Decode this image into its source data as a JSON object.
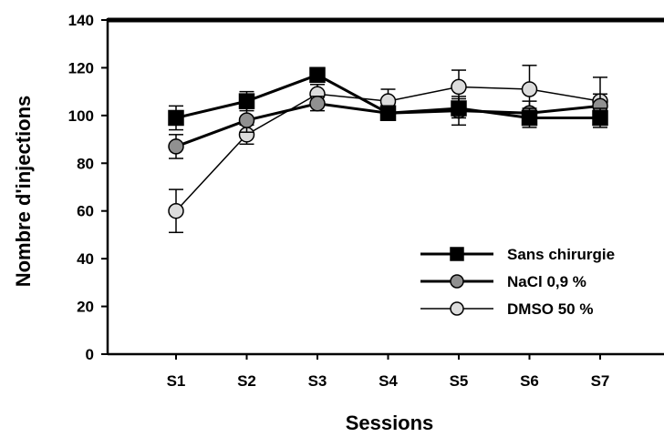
{
  "chart_data": {
    "type": "line",
    "xlabel": "Sessions",
    "ylabel": "Nombre d'injections",
    "ylim": [
      0,
      140
    ],
    "yticks": [
      0,
      20,
      40,
      60,
      80,
      100,
      120,
      140
    ],
    "categories": [
      "S1",
      "S2",
      "S3",
      "S4",
      "S5",
      "S6",
      "S7"
    ],
    "legend_position": "bottom-right",
    "grid": false,
    "series": [
      {
        "name": "Sans chirurgie",
        "marker": "square",
        "fill": "#000000",
        "stroke": "#000000",
        "values": [
          99,
          106,
          117,
          101,
          103,
          99,
          99
        ],
        "errors": [
          5,
          4,
          3,
          3,
          4,
          4,
          4
        ]
      },
      {
        "name": "NaCl 0,9 %",
        "marker": "circle",
        "fill": "#909090",
        "stroke": "#000000",
        "values": [
          87,
          98,
          105,
          101,
          102,
          101,
          104
        ],
        "errors": [
          5,
          5,
          3,
          3,
          6,
          5,
          5
        ]
      },
      {
        "name": "DMSO 50 %",
        "marker": "circle",
        "fill": "#dcdcdc",
        "stroke": "#000000",
        "values": [
          60,
          92,
          109,
          106,
          112,
          111,
          106
        ],
        "errors": [
          9,
          4,
          4,
          5,
          7,
          10,
          10
        ]
      }
    ]
  }
}
